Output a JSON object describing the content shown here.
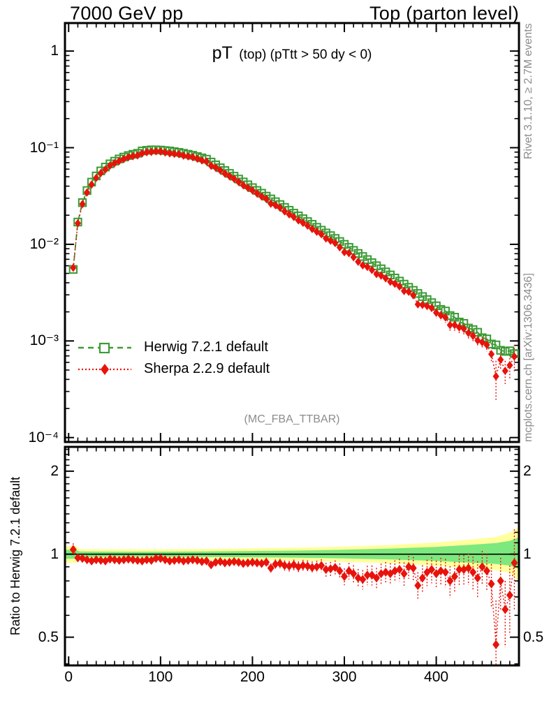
{
  "header": {
    "left": "7000 GeV pp",
    "right": "Top (parton level)"
  },
  "plot_title": {
    "main": "pT",
    "detail": "(top) (pTtt > 50 dy < 0)"
  },
  "side_notes": {
    "rivet": "Rivet 3.1.10, ≥ 2.7M events",
    "mcplots": "mcplots.cern.ch [arXiv:1306.3436]"
  },
  "watermark": "(MC_FBA_TTBAR)",
  "ratio_axis_title": "Ratio to Herwig 7.2.1 default",
  "colors": {
    "herwig_green": "#3b9b35",
    "sherpa_red": "#e8130b",
    "band_inner_green": "#7de87d",
    "band_outer_yellow": "#ffff9e",
    "muted_text": "#8c8c8c"
  },
  "chart_data": {
    "type": "line",
    "title": "pT (top) (pTtt > 50 dy < 0)",
    "xlabel": "",
    "ylabel": "",
    "xlim": [
      -4,
      490
    ],
    "main_ylim": [
      9e-05,
      1.95
    ],
    "ratio_ylim": [
      0.395,
      2.45
    ],
    "x_ticks": [
      {
        "label": "0",
        "value": 0
      },
      {
        "label": "100",
        "value": 100
      },
      {
        "label": "200",
        "value": 200
      },
      {
        "label": "300",
        "value": 300
      },
      {
        "label": "400",
        "value": 400
      }
    ],
    "main_yticks": [
      {
        "label": "1",
        "value": 1
      },
      {
        "label": "10⁻¹",
        "value": 0.1
      },
      {
        "label": "10⁻²",
        "value": 0.01
      },
      {
        "label": "10⁻³",
        "value": 0.001
      },
      {
        "label": "10⁻⁴",
        "value": 0.0001
      }
    ],
    "ratio_yticks": [
      {
        "label": "2",
        "value": 2
      },
      {
        "label": "1",
        "value": 1
      },
      {
        "label": "0.5",
        "value": 0.5
      }
    ],
    "ratio_minor_ticks": [
      0.4,
      0.6,
      0.7,
      0.8,
      0.9,
      1.1,
      1.2,
      1.3,
      1.4,
      1.5,
      1.6,
      1.7,
      1.8,
      1.9,
      2.1,
      2.2,
      2.3,
      2.4
    ],
    "x": [
      5,
      10,
      15,
      20,
      25,
      30,
      35,
      40,
      45,
      50,
      55,
      60,
      65,
      70,
      75,
      80,
      85,
      90,
      95,
      100,
      105,
      110,
      115,
      120,
      125,
      130,
      135,
      140,
      145,
      150,
      155,
      160,
      165,
      170,
      175,
      180,
      185,
      190,
      195,
      200,
      205,
      210,
      215,
      220,
      225,
      230,
      235,
      240,
      245,
      250,
      255,
      260,
      265,
      270,
      275,
      280,
      285,
      290,
      295,
      300,
      305,
      310,
      315,
      320,
      325,
      330,
      335,
      340,
      345,
      350,
      355,
      360,
      365,
      370,
      375,
      380,
      385,
      390,
      395,
      400,
      405,
      410,
      415,
      420,
      425,
      430,
      435,
      440,
      445,
      450,
      455,
      460,
      465,
      470,
      475,
      480,
      485
    ],
    "series": [
      {
        "name": "Herwig 7.2.1 default",
        "marker": "open-square",
        "line": "dashed",
        "values": [
          0.0055,
          0.017,
          0.027,
          0.036,
          0.044,
          0.051,
          0.0575,
          0.063,
          0.068,
          0.0725,
          0.0765,
          0.08,
          0.083,
          0.0855,
          0.0875,
          0.0925,
          0.094,
          0.095,
          0.095,
          0.0945,
          0.0935,
          0.0925,
          0.091,
          0.0895,
          0.0875,
          0.0855,
          0.0835,
          0.081,
          0.0785,
          0.076,
          0.071,
          0.0664,
          0.062,
          0.058,
          0.0542,
          0.0507,
          0.0473,
          0.0442,
          0.0413,
          0.0386,
          0.0361,
          0.0338,
          0.0315,
          0.0295,
          0.0276,
          0.0258,
          0.0241,
          0.0225,
          0.021,
          0.0197,
          0.0184,
          0.0172,
          0.0161,
          0.015,
          0.014,
          0.0131,
          0.0123,
          0.0115,
          0.0107,
          0.01,
          0.0093,
          0.00865,
          0.00805,
          0.00748,
          0.00695,
          0.00646,
          0.006,
          0.00558,
          0.00518,
          0.00482,
          0.00448,
          0.00416,
          0.00387,
          0.00359,
          0.00334,
          0.0031,
          0.00288,
          0.00268,
          0.00249,
          0.00231,
          0.00212,
          0.00204,
          0.00183,
          0.00176,
          0.00157,
          0.00152,
          0.00136,
          0.00131,
          0.00123,
          0.00108,
          0.00105,
          0.00093,
          0.00091,
          0.0008,
          0.00078,
          0.00079,
          0.00074
        ]
      },
      {
        "name": "Sherpa 2.2.9 default",
        "marker": "filled-diamond",
        "line": "dotted",
        "values": [
          0.00572,
          0.0165,
          0.0261,
          0.0344,
          0.0416,
          0.0487,
          0.0546,
          0.0595,
          0.0653,
          0.0692,
          0.0727,
          0.0764,
          0.0797,
          0.0817,
          0.0831,
          0.0874,
          0.0898,
          0.0903,
          0.0917,
          0.0912,
          0.0893,
          0.0874,
          0.0865,
          0.0855,
          0.0827,
          0.0812,
          0.0797,
          0.077,
          0.0738,
          0.0718,
          0.065,
          0.0621,
          0.0583,
          0.0539,
          0.0507,
          0.0477,
          0.0442,
          0.0409,
          0.0384,
          0.0361,
          0.0336,
          0.0313,
          0.0295,
          0.0263,
          0.0254,
          0.0239,
          0.0219,
          0.0204,
          0.0192,
          0.0177,
          0.0167,
          0.0156,
          0.0144,
          0.0135,
          0.0127,
          0.0115,
          0.0109,
          0.0103,
          0.00931,
          0.0083,
          0.00809,
          0.00735,
          0.0066,
          0.00606,
          0.00584,
          0.00543,
          0.00492,
          0.00474,
          0.00445,
          0.0041,
          0.0039,
          0.00366,
          0.00329,
          0.00323,
          0.00297,
          0.00239,
          0.00236,
          0.0023,
          0.00219,
          0.00196,
          0.00184,
          0.00175,
          0.00146,
          0.00146,
          0.00138,
          0.00134,
          0.00121,
          0.00113,
          0.00101,
          0.00097,
          0.00091,
          0.00073,
          0.00043,
          0.00064,
          0.00049,
          0.00056,
          0.00069
        ]
      }
    ],
    "ratio": [
      1.04,
      0.97,
      0.965,
      0.955,
      0.945,
      0.955,
      0.95,
      0.945,
      0.96,
      0.955,
      0.95,
      0.955,
      0.96,
      0.955,
      0.95,
      0.945,
      0.955,
      0.95,
      0.965,
      0.965,
      0.955,
      0.945,
      0.95,
      0.955,
      0.945,
      0.95,
      0.955,
      0.95,
      0.94,
      0.945,
      0.915,
      0.935,
      0.94,
      0.93,
      0.935,
      0.94,
      0.935,
      0.925,
      0.93,
      0.935,
      0.93,
      0.925,
      0.935,
      0.89,
      0.92,
      0.925,
      0.91,
      0.905,
      0.915,
      0.9,
      0.91,
      0.905,
      0.895,
      0.9,
      0.91,
      0.88,
      0.885,
      0.895,
      0.87,
      0.83,
      0.87,
      0.85,
      0.82,
      0.81,
      0.84,
      0.84,
      0.82,
      0.85,
      0.86,
      0.85,
      0.87,
      0.88,
      0.85,
      0.9,
      0.89,
      0.77,
      0.82,
      0.86,
      0.88,
      0.85,
      0.87,
      0.86,
      0.8,
      0.83,
      0.88,
      0.88,
      0.89,
      0.86,
      0.82,
      0.9,
      0.87,
      0.78,
      0.47,
      0.8,
      0.63,
      0.71,
      0.93
    ],
    "ratio_err": [
      0.055,
      0.03,
      0.022,
      0.022,
      0.022,
      0.022,
      0.022,
      0.022,
      0.022,
      0.022,
      0.022,
      0.022,
      0.022,
      0.022,
      0.022,
      0.022,
      0.022,
      0.022,
      0.024,
      0.024,
      0.026,
      0.026,
      0.026,
      0.026,
      0.027,
      0.027,
      0.028,
      0.028,
      0.028,
      0.029,
      0.029,
      0.03,
      0.03,
      0.031,
      0.031,
      0.032,
      0.032,
      0.033,
      0.033,
      0.034,
      0.035,
      0.035,
      0.036,
      0.036,
      0.037,
      0.038,
      0.039,
      0.04,
      0.041,
      0.042,
      0.044,
      0.045,
      0.046,
      0.048,
      0.049,
      0.051,
      0.052,
      0.054,
      0.056,
      0.058,
      0.06,
      0.062,
      0.064,
      0.066,
      0.068,
      0.07,
      0.072,
      0.074,
      0.076,
      0.078,
      0.08,
      0.082,
      0.084,
      0.086,
      0.088,
      0.09,
      0.092,
      0.094,
      0.096,
      0.098,
      0.1,
      0.102,
      0.105,
      0.108,
      0.111,
      0.114,
      0.117,
      0.12,
      0.124,
      0.128,
      0.132,
      0.14,
      0.21,
      0.17,
      0.17,
      0.2,
      0.3
    ],
    "bands": {
      "yellow": [
        [
          -4,
          0.93,
          1.07
        ],
        [
          8,
          0.93,
          1.07
        ],
        [
          12,
          0.956,
          1.044
        ],
        [
          50,
          0.958,
          1.042
        ],
        [
          100,
          0.957,
          1.043
        ],
        [
          150,
          0.955,
          1.046
        ],
        [
          200,
          0.951,
          1.05
        ],
        [
          250,
          0.946,
          1.056
        ],
        [
          300,
          0.938,
          1.066
        ],
        [
          350,
          0.926,
          1.08
        ],
        [
          400,
          0.908,
          1.103
        ],
        [
          440,
          0.888,
          1.132
        ],
        [
          465,
          0.875,
          1.155
        ],
        [
          480,
          0.857,
          1.196
        ],
        [
          490,
          0.8,
          1.255
        ]
      ],
      "green": [
        [
          -4,
          0.963,
          1.037
        ],
        [
          8,
          0.963,
          1.037
        ],
        [
          12,
          0.977,
          1.023
        ],
        [
          50,
          0.979,
          1.021
        ],
        [
          100,
          0.979,
          1.021
        ],
        [
          150,
          0.977,
          1.023
        ],
        [
          200,
          0.974,
          1.027
        ],
        [
          250,
          0.971,
          1.031
        ],
        [
          300,
          0.965,
          1.038
        ],
        [
          350,
          0.957,
          1.048
        ],
        [
          400,
          0.945,
          1.063
        ],
        [
          440,
          0.93,
          1.083
        ],
        [
          465,
          0.921,
          1.097
        ],
        [
          480,
          0.91,
          1.118
        ],
        [
          490,
          0.885,
          1.152
        ]
      ]
    },
    "legend_position": "upper-left-inside",
    "grid": false,
    "main_ylog": true,
    "ratio_ylog": true
  }
}
